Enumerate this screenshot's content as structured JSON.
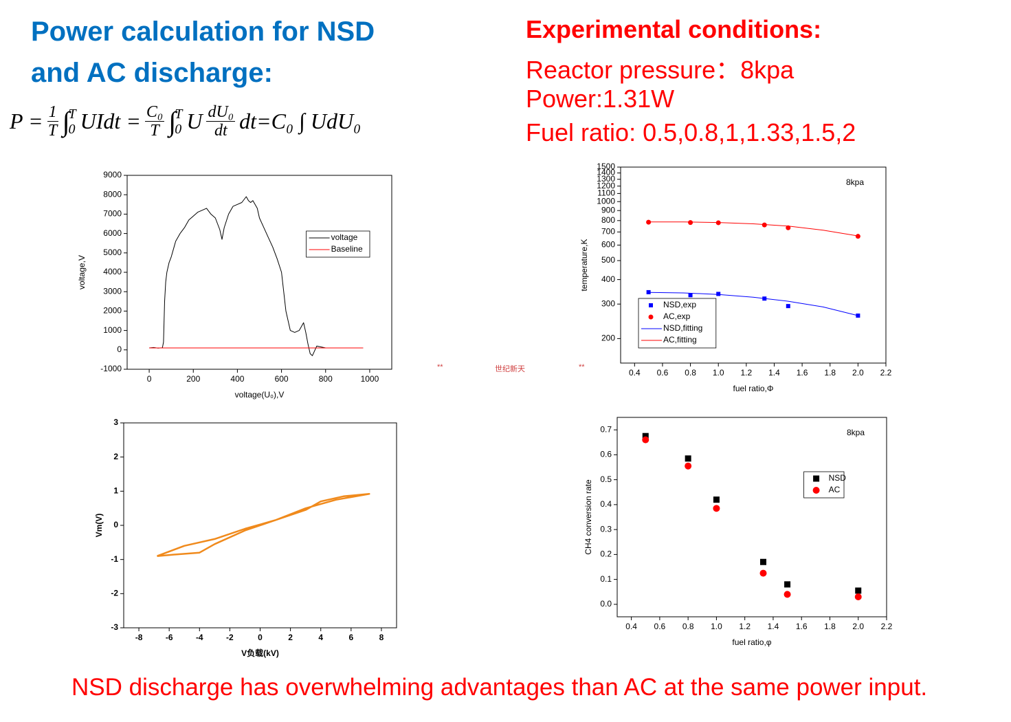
{
  "heading": [
    "Power calculation for NSD",
    "and AC discharge:"
  ],
  "formula": {
    "lhs": "P =",
    "f1_num": "1",
    "f1_den": "T",
    "int": "∫",
    "int_upper": "T",
    "int_lower": "0",
    "t1": "UIdt =",
    "f2_num": "C₀",
    "f2_den": "T",
    "t2": "U",
    "f3_num": "dU₀",
    "f3_den": "dt",
    "t3": "dt=C₀ ∫ UdU₀"
  },
  "conditions": {
    "title": "Experimental conditions:",
    "lines": [
      "Reactor pressure：8kpa",
      "Power:1.31W",
      "Fuel ratio: 0.5,0.8,1,1.33,1.5,2"
    ]
  },
  "watermark": [
    "**",
    "世纪新天",
    "**"
  ],
  "conclusion": "NSD discharge has overwhelming advantages than AC at the same power input.",
  "chart_data": [
    {
      "type": "line",
      "x_label": "voltage(U₀),V",
      "y_label": "voltage,V",
      "xlim": [
        -100,
        1100
      ],
      "xticks": [
        0,
        200,
        400,
        600,
        800,
        1000
      ],
      "ylim": [
        -1000,
        9000
      ],
      "yticks": [
        -1000,
        0,
        1000,
        2000,
        3000,
        4000,
        5000,
        6000,
        7000,
        8000,
        9000
      ],
      "legend": "center right",
      "series": [
        {
          "name": "voltage",
          "color": "#000000",
          "x": [
            0,
            20,
            40,
            60,
            65,
            70,
            75,
            80,
            90,
            100,
            120,
            140,
            160,
            180,
            200,
            220,
            240,
            260,
            280,
            300,
            320,
            330,
            340,
            360,
            380,
            400,
            420,
            440,
            450,
            460,
            470,
            480,
            490,
            500,
            520,
            540,
            560,
            580,
            600,
            610,
            620,
            640,
            660,
            680,
            690,
            700,
            710,
            720,
            730,
            740,
            760,
            800,
            900,
            970
          ],
          "values": [
            100,
            120,
            90,
            110,
            400,
            2500,
            3500,
            4000,
            4500,
            4800,
            5600,
            6000,
            6300,
            6700,
            6900,
            7100,
            7200,
            7300,
            7000,
            6800,
            6200,
            5700,
            6300,
            7000,
            7400,
            7500,
            7600,
            7900,
            7700,
            7600,
            7700,
            7500,
            7300,
            6800,
            6300,
            5800,
            5300,
            4700,
            4000,
            3000,
            2000,
            1000,
            900,
            1000,
            1200,
            1400,
            900,
            300,
            -200,
            -300,
            200,
            100,
            100,
            100
          ]
        },
        {
          "name": "Baseline",
          "color": "#ff0000",
          "x": [
            0,
            970
          ],
          "values": [
            100,
            100
          ]
        }
      ]
    },
    {
      "type": "scatter",
      "x_label": "fuel ratio,Φ",
      "y_label": "temperature,K",
      "annotation": "8kpa",
      "ylog": true,
      "xlim": [
        0.3,
        2.2
      ],
      "xticks": [
        0.4,
        0.6,
        0.8,
        {
          "value": 1,
          "label": "1.0"
        },
        1.2,
        1.4,
        1.6,
        1.8,
        {
          "value": 2,
          "label": "2.0"
        },
        2.2
      ],
      "ylim": [
        150,
        1500
      ],
      "yticks": [
        200,
        300,
        400,
        500,
        600,
        700,
        800,
        900,
        1000,
        1100,
        1200,
        1300,
        1400,
        1500
      ],
      "legend": "lower left",
      "series": [
        {
          "name": "NSD,exp",
          "type": "scatter",
          "marker": "square",
          "color": "#0000ff",
          "x": [
            0.5,
            0.8,
            1.0,
            1.33,
            1.5,
            2.0
          ],
          "values": [
            345,
            333,
            338,
            320,
            293,
            262
          ]
        },
        {
          "name": "AC,exp",
          "type": "scatter",
          "marker": "circle",
          "color": "#ff0000",
          "x": [
            0.5,
            0.8,
            1.0,
            1.33,
            1.5,
            2.0
          ],
          "values": [
            785,
            782,
            780,
            760,
            735,
            665
          ]
        },
        {
          "name": "NSD,fitting",
          "type": "line",
          "color": "#0000ff",
          "x": [
            0.5,
            0.75,
            1.0,
            1.25,
            1.5,
            1.75,
            2.0
          ],
          "values": [
            344,
            342,
            336,
            325,
            310,
            290,
            262
          ]
        },
        {
          "name": "AC,fitting",
          "type": "line",
          "color": "#ff0000",
          "x": [
            0.5,
            0.75,
            1.0,
            1.25,
            1.5,
            1.75,
            2.0
          ],
          "values": [
            788,
            787,
            782,
            770,
            750,
            715,
            668
          ]
        }
      ]
    },
    {
      "type": "line",
      "x_label": "V负载(kV)",
      "y_label": "Vm(V)",
      "xlim": [
        -9,
        9
      ],
      "xticks": [
        -8,
        -6,
        -4,
        -2,
        0,
        2,
        4,
        6,
        8
      ],
      "ylim": [
        -3,
        3
      ],
      "yticks": [
        -3,
        -2,
        -1,
        0,
        1,
        2,
        3
      ],
      "series": [
        {
          "color": "#f08a1c",
          "x": [
            -6.8,
            -5,
            -4,
            -3,
            -1,
            1,
            3,
            4,
            5.5,
            7.2,
            5,
            3,
            1,
            -1,
            -3,
            -4,
            -5.5,
            -6.8
          ],
          "values": [
            -0.9,
            -0.6,
            -0.5,
            -0.4,
            -0.1,
            0.15,
            0.45,
            0.7,
            0.85,
            0.92,
            0.75,
            0.5,
            0.15,
            -0.15,
            -0.55,
            -0.8,
            -0.85,
            -0.9
          ]
        }
      ]
    },
    {
      "type": "scatter",
      "x_label": "fuel ratio,φ",
      "y_label": "CH4 conversion rate",
      "annotation": "8kpa",
      "x": [
        0.5,
        0.8,
        1.0,
        1.33,
        1.5,
        2.0
      ],
      "xlim": [
        0.3,
        2.2
      ],
      "xticks": [
        0.4,
        0.6,
        0.8,
        {
          "value": 1,
          "label": "1.0"
        },
        1.2,
        1.4,
        1.6,
        1.8,
        {
          "value": 2,
          "label": "2.0"
        },
        2.2
      ],
      "ylim": [
        -0.05,
        0.75
      ],
      "yticks": [
        {
          "value": 0,
          "label": "0.0"
        },
        0.1,
        0.2,
        0.3,
        0.4,
        0.5,
        0.6,
        0.7
      ],
      "legend": "upper right",
      "series": [
        {
          "name": "NSD",
          "marker": "square",
          "color": "#000000",
          "values": [
            0.675,
            0.585,
            0.42,
            0.17,
            0.08,
            0.055
          ]
        },
        {
          "name": "AC",
          "marker": "circle",
          "color": "#ff0000",
          "values": [
            0.66,
            0.555,
            0.385,
            0.125,
            0.04,
            0.03
          ]
        }
      ]
    }
  ]
}
